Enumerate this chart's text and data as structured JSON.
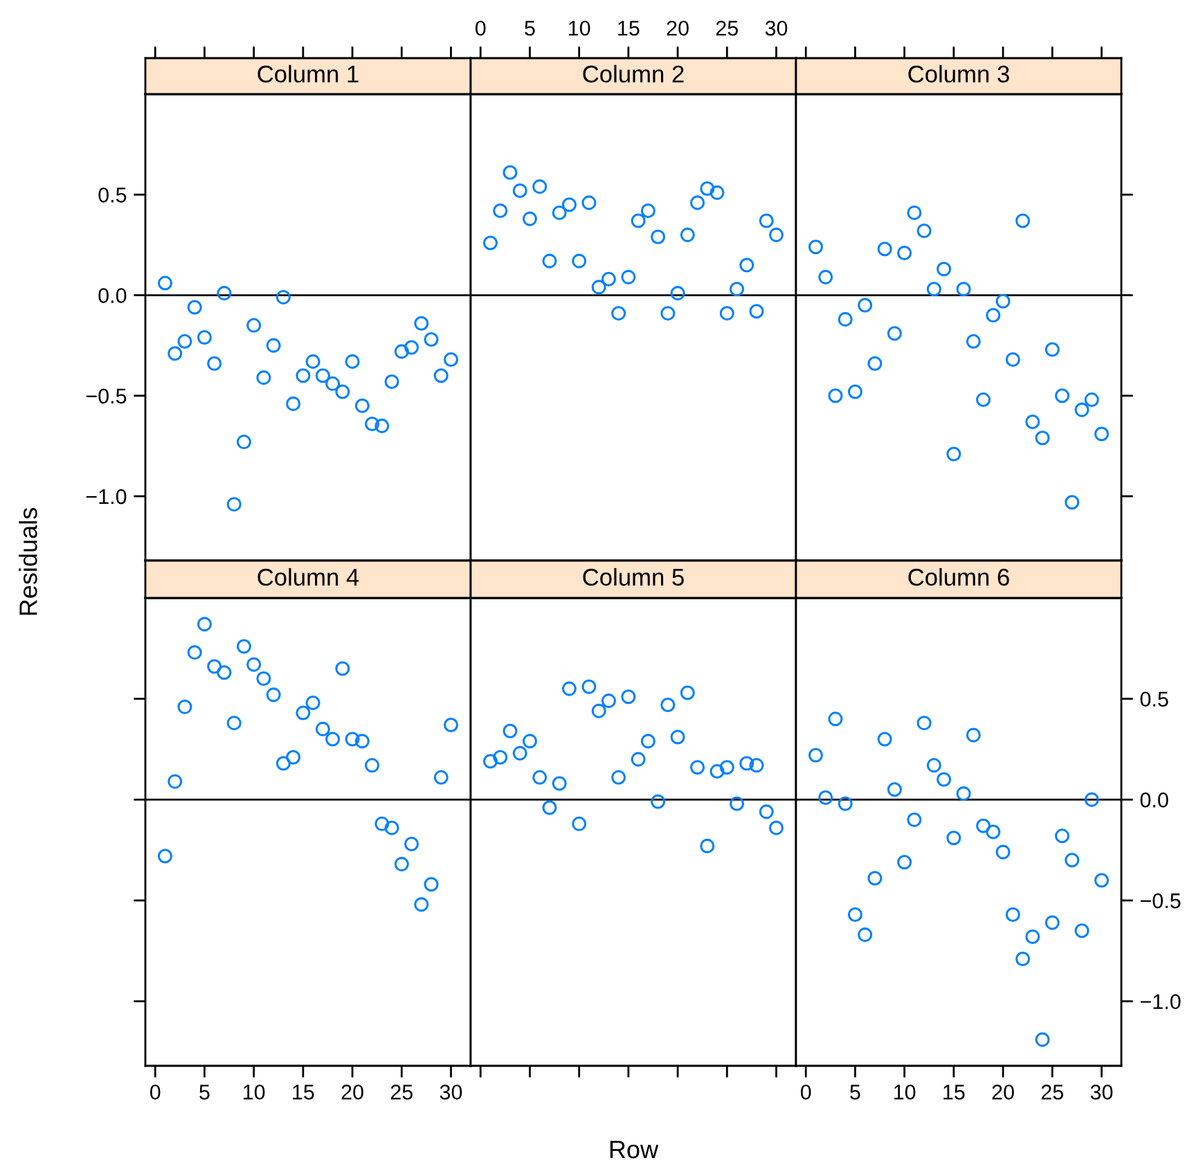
{
  "chart_data": [
    {
      "type": "scatter",
      "title": "Column 1",
      "ylabel": "Residuals",
      "color": "#0080ff",
      "marker": "circle",
      "tick_labels": "y",
      "xlim": [
        -1,
        32
      ],
      "xticks": [
        0,
        5,
        10,
        15,
        20,
        25,
        30
      ],
      "ylim": [
        -1.32,
        1.0
      ],
      "yticks": [
        {
          "value": -1.0,
          "label": "−1.0"
        },
        {
          "value": -0.5,
          "label": "−0.5"
        },
        {
          "value": 0,
          "label": "0.0"
        },
        {
          "value": 0.5,
          "label": "0.5"
        }
      ],
      "ref_lines": [
        {
          "axis": "y",
          "value": 0,
          "color": "#000000"
        }
      ],
      "x": [
        1,
        2,
        3,
        4,
        5,
        6,
        7,
        8,
        9,
        10,
        11,
        12,
        13,
        14,
        15,
        16,
        17,
        18,
        19,
        20,
        21,
        22,
        23,
        24,
        25,
        26,
        27,
        28,
        29,
        30
      ],
      "values": [
        0.06,
        -0.29,
        -0.23,
        -0.06,
        -0.21,
        -0.34,
        0.01,
        -1.04,
        -0.73,
        -0.15,
        -0.41,
        -0.25,
        -0.01,
        -0.54,
        -0.4,
        -0.33,
        -0.4,
        -0.44,
        -0.48,
        -0.33,
        -0.55,
        -0.64,
        -0.65,
        -0.43,
        -0.28,
        -0.26,
        -0.14,
        -0.22,
        -0.4,
        -0.32
      ]
    },
    {
      "type": "scatter",
      "title": "Column 2",
      "color": "#0080ff",
      "marker": "circle",
      "tick_labels": "x",
      "xlim": [
        -1,
        32
      ],
      "xticks": [
        0,
        5,
        10,
        15,
        20,
        25,
        30
      ],
      "ylim": [
        -1.32,
        1.0
      ],
      "ref_lines": [
        {
          "axis": "y",
          "value": 0,
          "color": "#000000"
        }
      ],
      "x": [
        1,
        2,
        3,
        4,
        5,
        6,
        7,
        8,
        9,
        10,
        11,
        12,
        13,
        14,
        15,
        16,
        17,
        18,
        19,
        20,
        21,
        22,
        23,
        24,
        25,
        26,
        27,
        28,
        29,
        30
      ],
      "values": [
        0.26,
        0.42,
        0.61,
        0.52,
        0.38,
        0.54,
        0.17,
        0.41,
        0.45,
        0.17,
        0.46,
        0.04,
        0.08,
        -0.09,
        0.09,
        0.37,
        0.42,
        0.29,
        -0.09,
        0.01,
        0.3,
        0.46,
        0.53,
        0.51,
        -0.09,
        0.03,
        0.15,
        -0.08,
        0.37,
        0.3
      ]
    },
    {
      "type": "scatter",
      "title": "Column 3",
      "color": "#0080ff",
      "marker": "circle",
      "tick_labels": false,
      "xlim": [
        -1,
        32
      ],
      "xticks": [
        0,
        5,
        10,
        15,
        20,
        25,
        30
      ],
      "ylim": [
        -1.32,
        1.0
      ],
      "yticks": [
        -1.0,
        -0.5,
        0,
        0.5
      ],
      "ref_lines": [
        {
          "axis": "y",
          "value": 0,
          "color": "#000000"
        }
      ],
      "x": [
        1,
        2,
        3,
        4,
        5,
        6,
        7,
        8,
        9,
        10,
        11,
        12,
        13,
        14,
        15,
        16,
        17,
        18,
        19,
        20,
        21,
        22,
        23,
        24,
        25,
        26,
        27,
        28,
        29,
        30
      ],
      "values": [
        0.24,
        0.09,
        -0.5,
        -0.12,
        -0.48,
        -0.05,
        -0.34,
        0.23,
        -0.19,
        0.21,
        0.41,
        0.32,
        0.03,
        0.13,
        -0.79,
        0.03,
        -0.23,
        -0.52,
        -0.1,
        -0.03,
        -0.32,
        0.37,
        -0.63,
        -0.71,
        -0.27,
        -0.5,
        -1.03,
        -0.57,
        -0.52,
        -0.69
      ]
    },
    {
      "type": "scatter",
      "title": "Column 4",
      "color": "#0080ff",
      "marker": "circle",
      "tick_labels": "x",
      "xlim": [
        -1,
        32
      ],
      "xticks": [
        0,
        5,
        10,
        15,
        20,
        25,
        30
      ],
      "ylim": [
        -1.32,
        1.0
      ],
      "yticks": [
        -1.0,
        -0.5,
        0,
        0.5
      ],
      "ref_lines": [
        {
          "axis": "y",
          "value": 0,
          "color": "#000000"
        }
      ],
      "x": [
        1,
        2,
        3,
        4,
        5,
        6,
        7,
        8,
        9,
        10,
        11,
        12,
        13,
        14,
        15,
        16,
        17,
        18,
        19,
        20,
        21,
        22,
        23,
        24,
        25,
        26,
        27,
        28,
        29,
        30
      ],
      "values": [
        -0.28,
        0.09,
        0.46,
        0.73,
        0.87,
        0.66,
        0.63,
        0.38,
        0.76,
        0.67,
        0.6,
        0.52,
        0.18,
        0.21,
        0.43,
        0.48,
        0.35,
        0.3,
        0.65,
        0.3,
        0.29,
        0.17,
        -0.12,
        -0.14,
        -0.32,
        -0.22,
        -0.52,
        -0.42,
        0.11,
        0.37
      ]
    },
    {
      "type": "scatter",
      "title": "Column 5",
      "xlabel": "Row",
      "color": "#0080ff",
      "marker": "circle",
      "tick_labels": false,
      "xlim": [
        -1,
        32
      ],
      "xticks": [
        0,
        5,
        10,
        15,
        20,
        25,
        30
      ],
      "ylim": [
        -1.32,
        1.0
      ],
      "ref_lines": [
        {
          "axis": "y",
          "value": 0,
          "color": "#000000"
        }
      ],
      "x": [
        1,
        2,
        3,
        4,
        5,
        6,
        7,
        8,
        9,
        10,
        11,
        12,
        13,
        14,
        15,
        16,
        17,
        18,
        19,
        20,
        21,
        22,
        23,
        24,
        25,
        26,
        27,
        28,
        29,
        30
      ],
      "values": [
        0.19,
        0.21,
        0.34,
        0.23,
        0.29,
        0.11,
        -0.04,
        0.08,
        0.55,
        -0.12,
        0.56,
        0.44,
        0.49,
        0.11,
        0.51,
        0.2,
        0.29,
        -0.01,
        0.47,
        0.31,
        0.53,
        0.16,
        -0.23,
        0.14,
        0.16,
        -0.02,
        0.18,
        0.17,
        -0.06,
        -0.14
      ]
    },
    {
      "type": "scatter",
      "title": "Column 6",
      "color": "#0080ff",
      "marker": "circle",
      "xlim": [
        -1,
        32
      ],
      "xticks": [
        0,
        5,
        10,
        15,
        20,
        25,
        30
      ],
      "ylim": [
        -1.32,
        1.0
      ],
      "yticks": [
        {
          "value": -1.0,
          "label": "−1.0"
        },
        {
          "value": -0.5,
          "label": "−0.5"
        },
        {
          "value": 0,
          "label": "0.0"
        },
        {
          "value": 0.5,
          "label": "0.5"
        }
      ],
      "ref_lines": [
        {
          "axis": "y",
          "value": 0,
          "color": "#000000"
        }
      ],
      "x": [
        1,
        2,
        3,
        4,
        5,
        6,
        7,
        8,
        9,
        10,
        11,
        12,
        13,
        14,
        15,
        16,
        17,
        18,
        19,
        20,
        21,
        22,
        23,
        24,
        25,
        26,
        27,
        28,
        29,
        30
      ],
      "values": [
        0.22,
        0.01,
        0.4,
        -0.02,
        -0.57,
        -0.67,
        -0.39,
        0.3,
        0.05,
        -0.31,
        -0.1,
        0.38,
        0.17,
        0.1,
        -0.19,
        0.03,
        0.32,
        -0.13,
        -0.16,
        -0.26,
        -0.57,
        -0.79,
        -0.68,
        -1.19,
        -0.61,
        -0.18,
        -0.3,
        -0.65,
        0.0,
        -0.4
      ]
    }
  ]
}
